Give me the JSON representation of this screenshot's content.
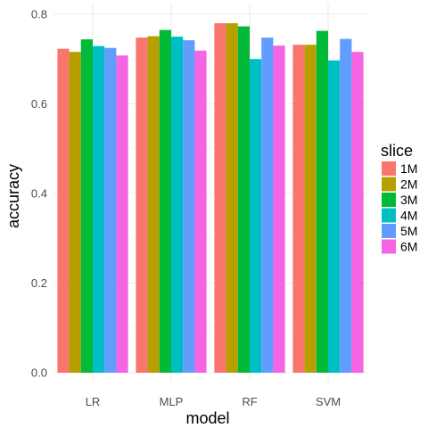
{
  "chart_data": {
    "type": "bar",
    "xlabel": "model",
    "ylabel": "accuracy",
    "categories": [
      "LR",
      "MLP",
      "RF",
      "SVM"
    ],
    "ylim": [
      0,
      0.8
    ],
    "yticks": [
      0.0,
      0.2,
      0.4,
      0.6,
      0.8
    ],
    "ytick_labels": [
      "0.0",
      "0.2",
      "0.4",
      "0.6",
      "0.8"
    ],
    "grid": true,
    "legend_title": "slice",
    "legend_position": "right",
    "series": [
      {
        "name": "1M",
        "color": "#F8766D",
        "values": [
          0.723,
          0.748,
          0.78,
          0.732
        ]
      },
      {
        "name": "2M",
        "color": "#B79F00",
        "values": [
          0.716,
          0.751,
          0.78,
          0.732
        ]
      },
      {
        "name": "3M",
        "color": "#00BA38",
        "values": [
          0.744,
          0.765,
          0.773,
          0.763
        ]
      },
      {
        "name": "4M",
        "color": "#00BFC4",
        "values": [
          0.729,
          0.75,
          0.7,
          0.697
        ]
      },
      {
        "name": "5M",
        "color": "#619CFF",
        "values": [
          0.725,
          0.742,
          0.748,
          0.745
        ]
      },
      {
        "name": "6M",
        "color": "#F564E3",
        "values": [
          0.708,
          0.719,
          0.73,
          0.716
        ]
      }
    ]
  }
}
